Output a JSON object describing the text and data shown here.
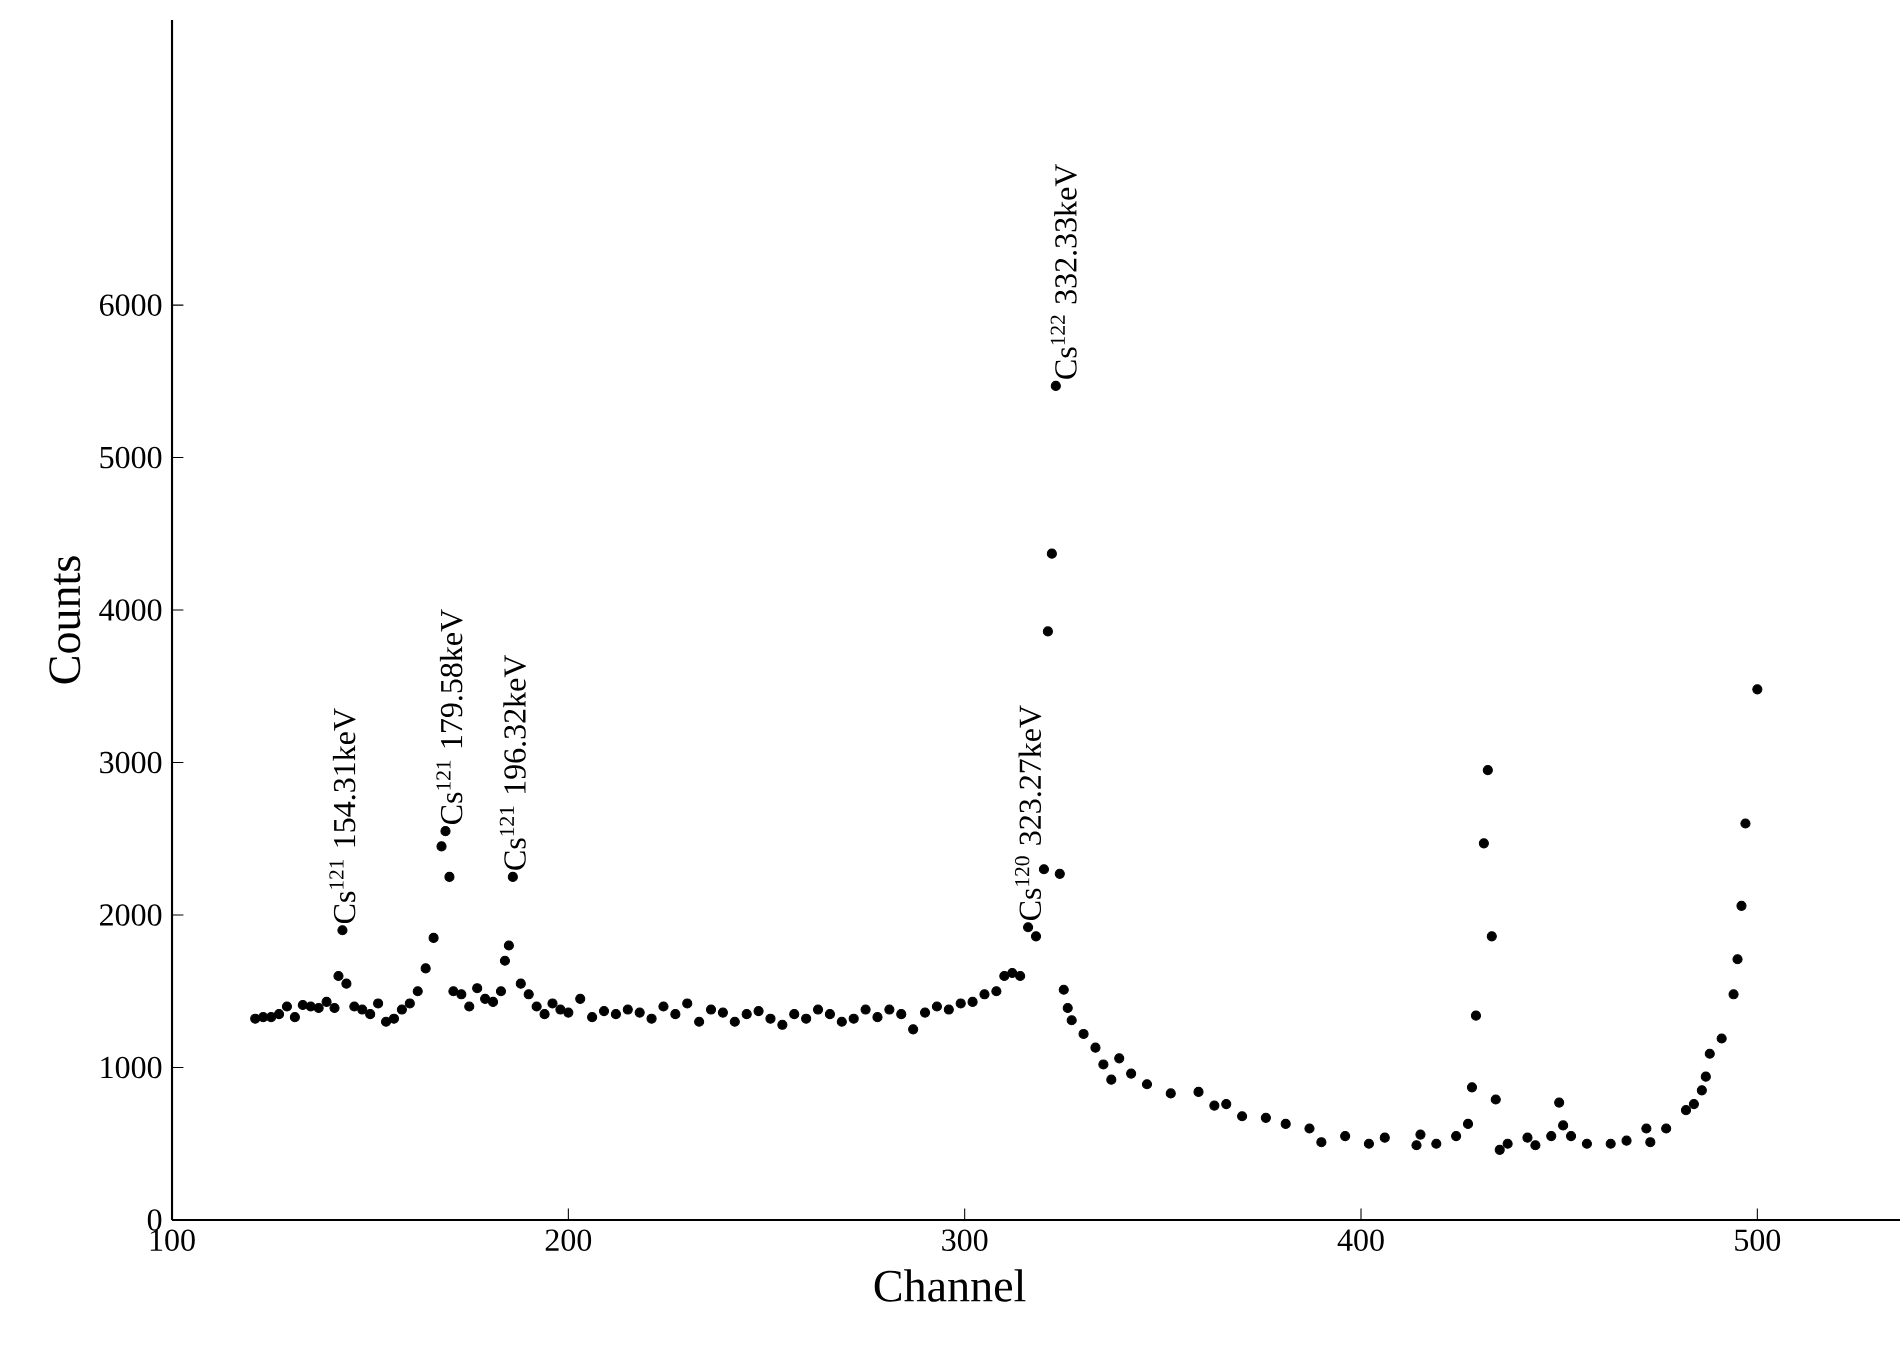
{
  "chart_data": {
    "type": "scatter",
    "xlabel": "Channel",
    "ylabel": "Counts",
    "xlim": [
      100,
      536
    ],
    "ylim": [
      0,
      7870
    ],
    "xticks": [
      100,
      200,
      300,
      400,
      500
    ],
    "yticks": [
      0,
      1000,
      2000,
      3000,
      4000,
      5000,
      6000
    ],
    "marker": "circle",
    "series": [
      {
        "color": "#000000",
        "x": [
          121,
          123,
          125,
          127,
          129,
          131,
          133,
          135,
          137,
          139,
          141,
          142,
          143,
          144,
          146,
          148,
          150,
          152,
          154,
          156,
          158,
          160,
          162,
          164,
          166,
          168,
          169,
          170,
          171,
          173,
          175,
          177,
          179,
          181,
          183,
          184,
          185,
          186,
          188,
          190,
          192,
          194,
          196,
          198,
          200,
          203,
          206,
          209,
          212,
          215,
          218,
          221,
          224,
          227,
          230,
          233,
          236,
          239,
          242,
          245,
          248,
          251,
          254,
          257,
          260,
          263,
          266,
          269,
          272,
          275,
          278,
          281,
          284,
          287,
          290,
          293,
          296,
          299,
          302,
          305,
          308,
          310,
          312,
          314,
          316,
          318,
          320,
          321,
          322,
          323,
          324,
          325,
          326,
          327,
          330,
          333,
          335,
          337,
          339,
          342,
          346,
          352,
          359,
          363,
          366,
          370,
          376,
          381,
          387,
          390,
          396,
          402,
          406,
          414,
          415,
          419,
          424,
          427,
          428,
          429,
          431,
          432,
          433,
          434,
          435,
          437,
          442,
          444,
          448,
          450,
          451,
          453,
          457,
          463,
          467,
          472,
          473,
          477,
          482,
          484,
          486,
          487,
          488,
          491,
          494,
          495,
          496,
          497,
          500
        ],
        "values": [
          1320,
          1330,
          1330,
          1350,
          1400,
          1330,
          1410,
          1400,
          1390,
          1430,
          1390,
          1600,
          1900,
          1550,
          1400,
          1380,
          1350,
          1420,
          1300,
          1320,
          1380,
          1420,
          1500,
          1650,
          1850,
          2450,
          2550,
          2250,
          1500,
          1480,
          1400,
          1520,
          1450,
          1430,
          1500,
          1700,
          1800,
          2250,
          1550,
          1480,
          1400,
          1350,
          1420,
          1380,
          1360,
          1450,
          1330,
          1370,
          1350,
          1380,
          1360,
          1320,
          1400,
          1350,
          1420,
          1300,
          1380,
          1360,
          1300,
          1350,
          1370,
          1320,
          1280,
          1350,
          1320,
          1380,
          1350,
          1300,
          1320,
          1380,
          1330,
          1380,
          1350,
          1250,
          1360,
          1400,
          1380,
          1420,
          1430,
          1480,
          1500,
          1600,
          1620,
          1600,
          1920,
          1860,
          2300,
          3860,
          4370,
          5470,
          2270,
          1510,
          1390,
          1310,
          1220,
          1130,
          1020,
          920,
          1060,
          960,
          890,
          830,
          840,
          750,
          760,
          680,
          670,
          630,
          600,
          510,
          550,
          500,
          540,
          490,
          560,
          500,
          550,
          630,
          870,
          1340,
          2470,
          2950,
          1860,
          790,
          460,
          500,
          540,
          490,
          550,
          770,
          620,
          550,
          500,
          500,
          520,
          600,
          510,
          600,
          720,
          760,
          850,
          940,
          1090,
          1190,
          1480,
          1710,
          2060,
          2600,
          3480
        ]
      }
    ],
    "annotations": [
      {
        "text": "Cs$^{121}$ 154.31keV",
        "x": 143,
        "y": 1900
      },
      {
        "text": "Cs$^{121}$ 179.58keV",
        "x": 170,
        "y": 2550
      },
      {
        "text": "Cs$^{121}$ 196.32keV",
        "x": 186,
        "y": 2250
      },
      {
        "text": "Cs$^{120}$ 323.27keV",
        "x": 316,
        "y": 1920
      },
      {
        "text": "Cs$^{122}$ 332.33keV",
        "x": 325,
        "y": 5470
      }
    ]
  }
}
